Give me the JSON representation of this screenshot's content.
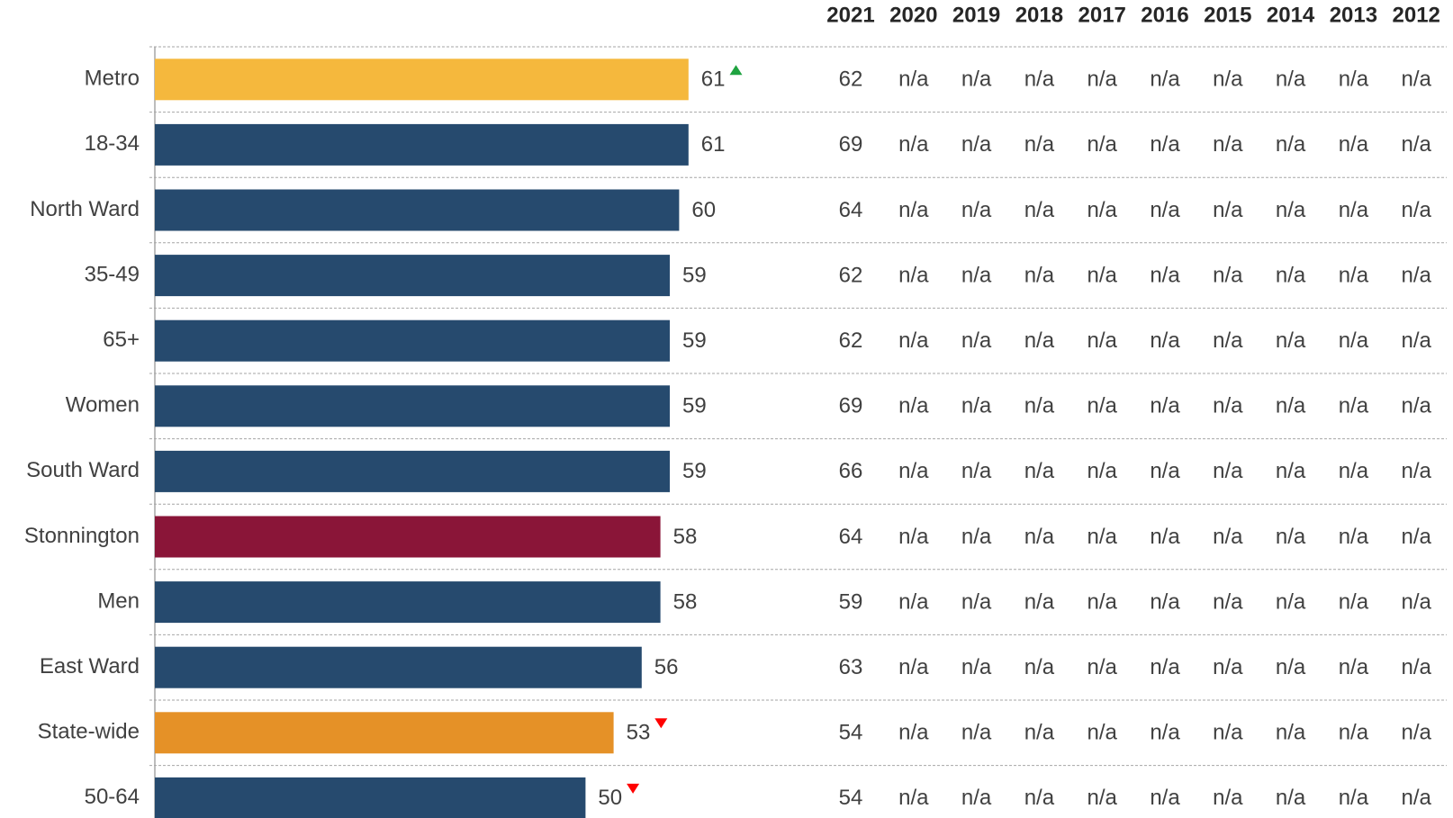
{
  "chart_data": {
    "type": "bar",
    "orientation": "horizontal",
    "categories": [
      "Metro",
      "18-34",
      "North Ward",
      "35-49",
      "65+",
      "Women",
      "South Ward",
      "Stonnington",
      "Men",
      "East Ward",
      "State-wide",
      "50-64"
    ],
    "values": [
      61,
      61,
      60,
      59,
      59,
      59,
      59,
      58,
      58,
      56,
      53,
      50
    ],
    "colors": [
      "#f5b83d",
      "#264a6e",
      "#264a6e",
      "#264a6e",
      "#264a6e",
      "#264a6e",
      "#264a6e",
      "#8a1538",
      "#264a6e",
      "#264a6e",
      "#e59127",
      "#264a6e"
    ],
    "label_colors": [
      "#ff0000",
      "#ff0000",
      "#404040",
      "#404040",
      "#404040",
      "#ff0000",
      "#ff0000",
      "#ff0000",
      "#404040",
      "#ff0000",
      "#ff0000",
      "#404040"
    ],
    "markers": [
      "up",
      null,
      null,
      null,
      null,
      null,
      null,
      null,
      null,
      null,
      "down",
      "down"
    ],
    "marker_colors": {
      "up": "#1fa340",
      "down": "#ff0000"
    },
    "xlim": [
      4,
      75
    ],
    "table": {
      "columns": [
        "2021",
        "2020",
        "2019",
        "2018",
        "2017",
        "2016",
        "2015",
        "2014",
        "2013",
        "2012"
      ],
      "rows": [
        [
          "62",
          "n/a",
          "n/a",
          "n/a",
          "n/a",
          "n/a",
          "n/a",
          "n/a",
          "n/a",
          "n/a"
        ],
        [
          "69",
          "n/a",
          "n/a",
          "n/a",
          "n/a",
          "n/a",
          "n/a",
          "n/a",
          "n/a",
          "n/a"
        ],
        [
          "64",
          "n/a",
          "n/a",
          "n/a",
          "n/a",
          "n/a",
          "n/a",
          "n/a",
          "n/a",
          "n/a"
        ],
        [
          "62",
          "n/a",
          "n/a",
          "n/a",
          "n/a",
          "n/a",
          "n/a",
          "n/a",
          "n/a",
          "n/a"
        ],
        [
          "62",
          "n/a",
          "n/a",
          "n/a",
          "n/a",
          "n/a",
          "n/a",
          "n/a",
          "n/a",
          "n/a"
        ],
        [
          "69",
          "n/a",
          "n/a",
          "n/a",
          "n/a",
          "n/a",
          "n/a",
          "n/a",
          "n/a",
          "n/a"
        ],
        [
          "66",
          "n/a",
          "n/a",
          "n/a",
          "n/a",
          "n/a",
          "n/a",
          "n/a",
          "n/a",
          "n/a"
        ],
        [
          "64",
          "n/a",
          "n/a",
          "n/a",
          "n/a",
          "n/a",
          "n/a",
          "n/a",
          "n/a",
          "n/a"
        ],
        [
          "59",
          "n/a",
          "n/a",
          "n/a",
          "n/a",
          "n/a",
          "n/a",
          "n/a",
          "n/a",
          "n/a"
        ],
        [
          "63",
          "n/a",
          "n/a",
          "n/a",
          "n/a",
          "n/a",
          "n/a",
          "n/a",
          "n/a",
          "n/a"
        ],
        [
          "54",
          "n/a",
          "n/a",
          "n/a",
          "n/a",
          "n/a",
          "n/a",
          "n/a",
          "n/a",
          "n/a"
        ],
        [
          "54",
          "n/a",
          "n/a",
          "n/a",
          "n/a",
          "n/a",
          "n/a",
          "n/a",
          "n/a",
          "n/a"
        ]
      ]
    }
  }
}
